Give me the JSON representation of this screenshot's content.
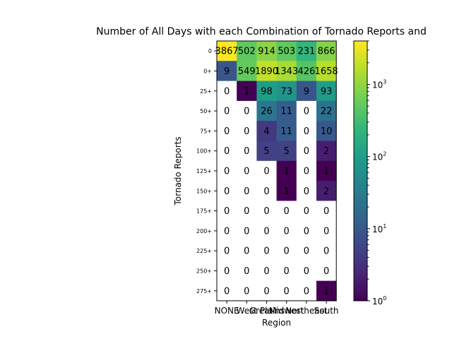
{
  "chart_data": {
    "type": "heatmap",
    "title": "Number of All Days with each Combination of Tornado Reports and",
    "xlabel": "Region",
    "ylabel": "Tornado Reports",
    "x_categories": [
      "NONE",
      "West",
      "Great Plains",
      "Midwest",
      "Northeast",
      "South"
    ],
    "x_tick_labels_as_drawn": [
      "NONE",
      "West",
      "Great",
      "Plains",
      "Midwest",
      "Northeast",
      "South"
    ],
    "y_categories": [
      "0",
      "0+",
      "25+",
      "50+",
      "75+",
      "100+",
      "125+",
      "150+",
      "175+",
      "200+",
      "225+",
      "250+",
      "275+"
    ],
    "values": [
      [
        3867,
        502,
        914,
        503,
        231,
        866
      ],
      [
        9,
        549,
        1890,
        1343,
        426,
        1658
      ],
      [
        0,
        1,
        98,
        73,
        9,
        93
      ],
      [
        0,
        0,
        26,
        11,
        0,
        22
      ],
      [
        0,
        0,
        4,
        11,
        0,
        10
      ],
      [
        0,
        0,
        5,
        5,
        0,
        2
      ],
      [
        0,
        0,
        0,
        1,
        0,
        1
      ],
      [
        0,
        0,
        0,
        1,
        0,
        2
      ],
      [
        0,
        0,
        0,
        0,
        0,
        0
      ],
      [
        0,
        0,
        0,
        0,
        0,
        0
      ],
      [
        0,
        0,
        0,
        0,
        0,
        0
      ],
      [
        0,
        0,
        0,
        0,
        0,
        0
      ],
      [
        0,
        0,
        0,
        0,
        0,
        1
      ]
    ],
    "colorscale": "viridis",
    "color_scale_type": "log",
    "zero_cells": "blank (white)",
    "colorbar": {
      "range": [
        1,
        4000
      ],
      "tick_values": [
        1,
        10,
        100,
        1000
      ],
      "tick_labels": [
        "10",
        "10",
        "10",
        "10"
      ],
      "tick_exponents": [
        "0",
        "1",
        "2",
        "3"
      ]
    },
    "grid": false
  }
}
